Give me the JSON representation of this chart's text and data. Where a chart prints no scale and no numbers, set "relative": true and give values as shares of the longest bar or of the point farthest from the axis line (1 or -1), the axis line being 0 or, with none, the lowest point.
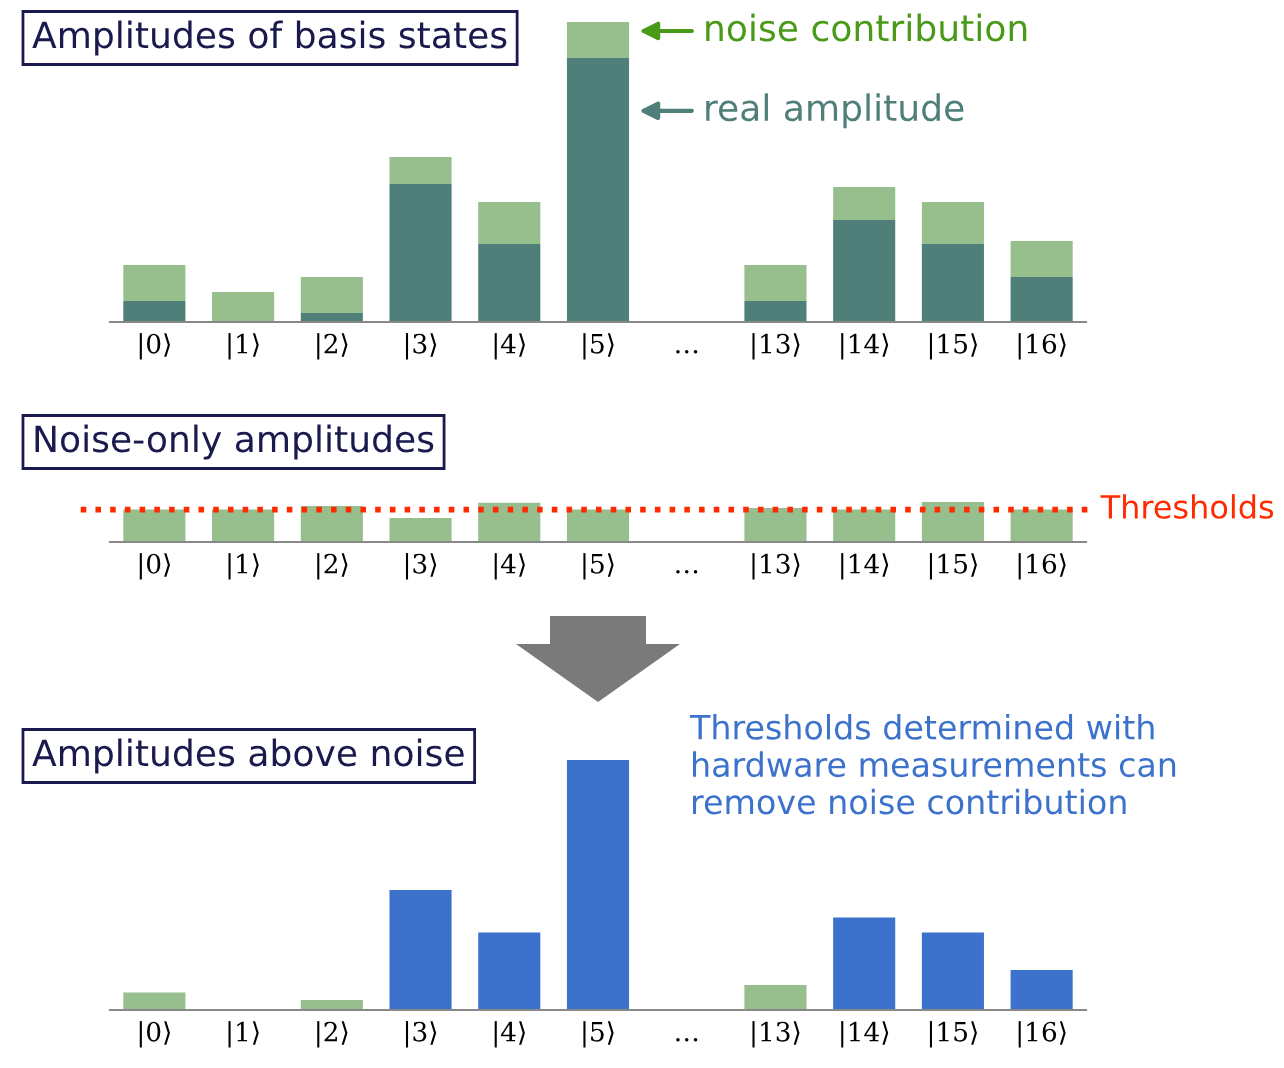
{
  "chart_data": [
    {
      "type": "bar",
      "title": "Amplitudes of basis states",
      "relative": true,
      "stacked": true,
      "categories": [
        "|0⟩",
        "|1⟩",
        "|2⟩",
        "|3⟩",
        "|4⟩",
        "|5⟩",
        "…",
        "|13⟩",
        "|14⟩",
        "|15⟩",
        "|16⟩"
      ],
      "series": [
        {
          "name": "real amplitude",
          "color": "#4f7f78",
          "values": [
            0.07,
            0,
            0.03,
            0.46,
            0.26,
            0.88,
            0,
            0.07,
            0.34,
            0.26,
            0.15
          ]
        },
        {
          "name": "noise contribution",
          "color": "#97bf8d",
          "values": [
            0.12,
            0.1,
            0.12,
            0.09,
            0.14,
            0.12,
            0,
            0.12,
            0.11,
            0.14,
            0.12
          ]
        }
      ]
    },
    {
      "type": "bar",
      "title": "Noise-only amplitudes",
      "relative": true,
      "categories": [
        "|0⟩",
        "|1⟩",
        "|2⟩",
        "|3⟩",
        "|4⟩",
        "|5⟩",
        "…",
        "|13⟩",
        "|14⟩",
        "|15⟩",
        "|16⟩"
      ],
      "values": [
        0.81,
        0.81,
        0.9,
        0.6,
        0.98,
        0.81,
        0,
        0.85,
        0.81,
        1,
        0.81
      ],
      "color": "#97bf8d",
      "ref_lines": [
        {
          "axis": "y",
          "value": 0.81,
          "label": "Thresholds",
          "color": "#ff2a00",
          "line_style": "dotted"
        }
      ]
    },
    {
      "type": "bar",
      "title": "Amplitudes above noise",
      "relative": true,
      "categories": [
        "|0⟩",
        "|1⟩",
        "|2⟩",
        "|3⟩",
        "|4⟩",
        "|5⟩",
        "…",
        "|13⟩",
        "|14⟩",
        "|15⟩",
        "|16⟩"
      ],
      "values": [
        0.07,
        0,
        0.04,
        0.48,
        0.31,
        1,
        0,
        0.1,
        0.37,
        0.31,
        0.16
      ],
      "colors": [
        "#97bf8d",
        "#97bf8d",
        "#97bf8d",
        "#3d72cc",
        "#3d72cc",
        "#3d72cc",
        "#3d72cc",
        "#97bf8d",
        "#3d72cc",
        "#3d72cc",
        "#3d72cc"
      ],
      "annotations": [
        "Thresholds determined with hardware measurements can remove noise contribution"
      ]
    }
  ]
}
